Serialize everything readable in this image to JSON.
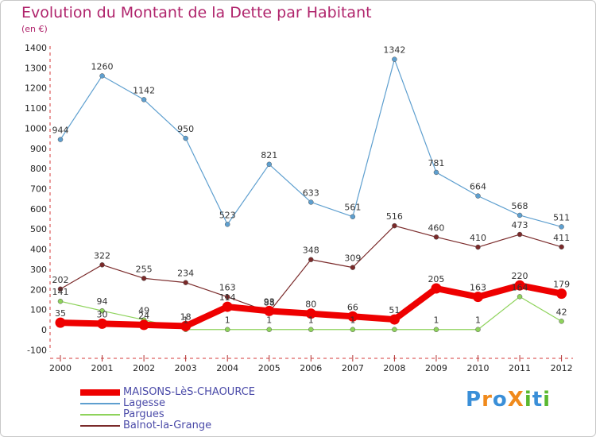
{
  "title": "Evolution du Montant de la Dette par Habitant",
  "subtitle": "(en €)",
  "logo": {
    "text": "ProXiti",
    "letters": [
      {
        "ch": "P",
        "color": "#3a8fd8"
      },
      {
        "ch": "r",
        "color": "#f08a1c"
      },
      {
        "ch": "o",
        "color": "#3a8fd8"
      },
      {
        "ch": "X",
        "color": "#f08a1c"
      },
      {
        "ch": "i",
        "color": "#5ab831"
      },
      {
        "ch": "t",
        "color": "#3a8fd8"
      },
      {
        "ch": "i",
        "color": "#5ab831"
      }
    ]
  },
  "chart_data": {
    "type": "line",
    "title": "Evolution du Montant de la Dette par Habitant",
    "subtitle": "(en €)",
    "x": [
      "2000",
      "2001",
      "2002",
      "2003",
      "2004",
      "2005",
      "2006",
      "2007",
      "2008",
      "2009",
      "2010",
      "2011",
      "2012"
    ],
    "y_ticks": [
      "-100",
      "0",
      "100",
      "200",
      "300",
      "400",
      "500",
      "600",
      "700",
      "800",
      "900",
      "1000",
      "1100",
      "1200",
      "1300",
      "1400"
    ],
    "ylim": [
      -100,
      1400
    ],
    "grid": false,
    "legend_position": "bottom-left",
    "series": [
      {
        "name": "MAISONS-LèS-CHAOURCE",
        "color": "#ee0000",
        "bold": true,
        "values": [
          35,
          30,
          24,
          18,
          114,
          93,
          80,
          66,
          51,
          205,
          163,
          220,
          179
        ],
        "labels": [
          "35",
          "30",
          "24",
          "18",
          "114",
          "93",
          "80",
          "66",
          "51",
          "205",
          "163",
          "220",
          "179"
        ]
      },
      {
        "name": "Lagesse",
        "color": "#5e9fcf",
        "values": [
          944,
          1260,
          1142,
          950,
          523,
          821,
          633,
          561,
          1342,
          781,
          664,
          568,
          511
        ],
        "labels": [
          "944",
          "1260",
          "1142",
          "950",
          "523",
          "821",
          "633",
          "561",
          "1342",
          "781",
          "664",
          "568",
          "511"
        ]
      },
      {
        "name": "Pargues",
        "color": "#8ed35b",
        "values": [
          141,
          94,
          49,
          1,
          1,
          1,
          1,
          1,
          1,
          1,
          1,
          164,
          42
        ],
        "labels": [
          "141",
          "94",
          "49",
          "1",
          "1",
          "1",
          "1",
          "1",
          "",
          "1",
          "1",
          "164",
          "42"
        ]
      },
      {
        "name": "Balnot-la-Grange",
        "color": "#7a2a2a",
        "values": [
          202,
          322,
          255,
          234,
          163,
          88,
          348,
          309,
          516,
          460,
          410,
          473,
          411
        ],
        "labels": [
          "202",
          "322",
          "255",
          "234",
          "163",
          "88",
          "348",
          "309",
          "516",
          "460",
          "410",
          "473",
          "411"
        ]
      }
    ]
  }
}
